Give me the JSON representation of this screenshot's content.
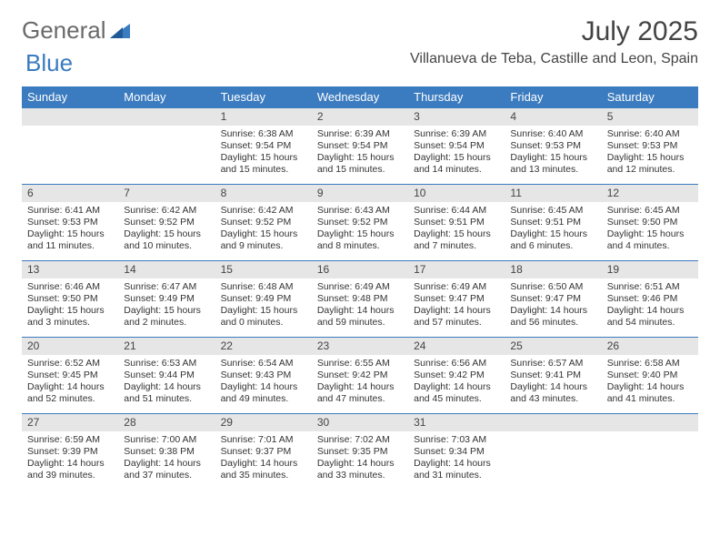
{
  "brand": {
    "part1": "General",
    "part2": "Blue"
  },
  "title": "July 2025",
  "location": "Villanueva de Teba, Castille and Leon, Spain",
  "colors": {
    "header_bg": "#3b7bbf",
    "header_text": "#ffffff",
    "daynum_bg": "#e6e6e6",
    "rule": "#3b7bbf",
    "text": "#333333",
    "logo_gray": "#6a6a6a",
    "logo_blue": "#3b7bbf"
  },
  "day_names": [
    "Sunday",
    "Monday",
    "Tuesday",
    "Wednesday",
    "Thursday",
    "Friday",
    "Saturday"
  ],
  "weeks": [
    [
      null,
      null,
      {
        "n": "1",
        "sr": "6:38 AM",
        "ss": "9:54 PM",
        "dl": "15 hours and 15 minutes."
      },
      {
        "n": "2",
        "sr": "6:39 AM",
        "ss": "9:54 PM",
        "dl": "15 hours and 15 minutes."
      },
      {
        "n": "3",
        "sr": "6:39 AM",
        "ss": "9:54 PM",
        "dl": "15 hours and 14 minutes."
      },
      {
        "n": "4",
        "sr": "6:40 AM",
        "ss": "9:53 PM",
        "dl": "15 hours and 13 minutes."
      },
      {
        "n": "5",
        "sr": "6:40 AM",
        "ss": "9:53 PM",
        "dl": "15 hours and 12 minutes."
      }
    ],
    [
      {
        "n": "6",
        "sr": "6:41 AM",
        "ss": "9:53 PM",
        "dl": "15 hours and 11 minutes."
      },
      {
        "n": "7",
        "sr": "6:42 AM",
        "ss": "9:52 PM",
        "dl": "15 hours and 10 minutes."
      },
      {
        "n": "8",
        "sr": "6:42 AM",
        "ss": "9:52 PM",
        "dl": "15 hours and 9 minutes."
      },
      {
        "n": "9",
        "sr": "6:43 AM",
        "ss": "9:52 PM",
        "dl": "15 hours and 8 minutes."
      },
      {
        "n": "10",
        "sr": "6:44 AM",
        "ss": "9:51 PM",
        "dl": "15 hours and 7 minutes."
      },
      {
        "n": "11",
        "sr": "6:45 AM",
        "ss": "9:51 PM",
        "dl": "15 hours and 6 minutes."
      },
      {
        "n": "12",
        "sr": "6:45 AM",
        "ss": "9:50 PM",
        "dl": "15 hours and 4 minutes."
      }
    ],
    [
      {
        "n": "13",
        "sr": "6:46 AM",
        "ss": "9:50 PM",
        "dl": "15 hours and 3 minutes."
      },
      {
        "n": "14",
        "sr": "6:47 AM",
        "ss": "9:49 PM",
        "dl": "15 hours and 2 minutes."
      },
      {
        "n": "15",
        "sr": "6:48 AM",
        "ss": "9:49 PM",
        "dl": "15 hours and 0 minutes."
      },
      {
        "n": "16",
        "sr": "6:49 AM",
        "ss": "9:48 PM",
        "dl": "14 hours and 59 minutes."
      },
      {
        "n": "17",
        "sr": "6:49 AM",
        "ss": "9:47 PM",
        "dl": "14 hours and 57 minutes."
      },
      {
        "n": "18",
        "sr": "6:50 AM",
        "ss": "9:47 PM",
        "dl": "14 hours and 56 minutes."
      },
      {
        "n": "19",
        "sr": "6:51 AM",
        "ss": "9:46 PM",
        "dl": "14 hours and 54 minutes."
      }
    ],
    [
      {
        "n": "20",
        "sr": "6:52 AM",
        "ss": "9:45 PM",
        "dl": "14 hours and 52 minutes."
      },
      {
        "n": "21",
        "sr": "6:53 AM",
        "ss": "9:44 PM",
        "dl": "14 hours and 51 minutes."
      },
      {
        "n": "22",
        "sr": "6:54 AM",
        "ss": "9:43 PM",
        "dl": "14 hours and 49 minutes."
      },
      {
        "n": "23",
        "sr": "6:55 AM",
        "ss": "9:42 PM",
        "dl": "14 hours and 47 minutes."
      },
      {
        "n": "24",
        "sr": "6:56 AM",
        "ss": "9:42 PM",
        "dl": "14 hours and 45 minutes."
      },
      {
        "n": "25",
        "sr": "6:57 AM",
        "ss": "9:41 PM",
        "dl": "14 hours and 43 minutes."
      },
      {
        "n": "26",
        "sr": "6:58 AM",
        "ss": "9:40 PM",
        "dl": "14 hours and 41 minutes."
      }
    ],
    [
      {
        "n": "27",
        "sr": "6:59 AM",
        "ss": "9:39 PM",
        "dl": "14 hours and 39 minutes."
      },
      {
        "n": "28",
        "sr": "7:00 AM",
        "ss": "9:38 PM",
        "dl": "14 hours and 37 minutes."
      },
      {
        "n": "29",
        "sr": "7:01 AM",
        "ss": "9:37 PM",
        "dl": "14 hours and 35 minutes."
      },
      {
        "n": "30",
        "sr": "7:02 AM",
        "ss": "9:35 PM",
        "dl": "14 hours and 33 minutes."
      },
      {
        "n": "31",
        "sr": "7:03 AM",
        "ss": "9:34 PM",
        "dl": "14 hours and 31 minutes."
      },
      null,
      null
    ]
  ],
  "labels": {
    "sunrise": "Sunrise:",
    "sunset": "Sunset:",
    "daylight": "Daylight:"
  }
}
